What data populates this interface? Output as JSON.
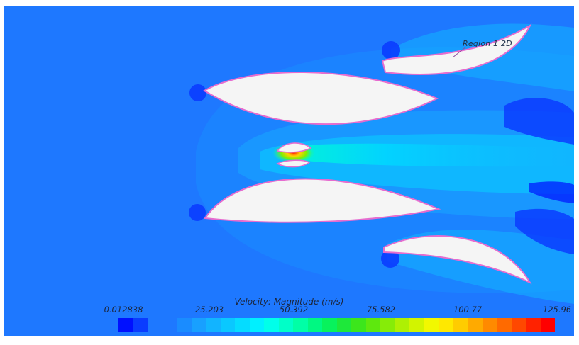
{
  "scene": {
    "region_label": "Region 1 2D",
    "background_color": "#1e78ff",
    "body_fill": "#f5f5f5",
    "body_outline": "#e66ccf"
  },
  "chart_data": {
    "type": "heatmap",
    "title": "Velocity: Magnitude (m/s)",
    "scalar_range": [
      0.012838,
      125.96
    ],
    "tick_labels": [
      "0.012838",
      "25.203",
      "50.392",
      "75.582",
      "100.77",
      "125.96"
    ],
    "tick_values": [
      0.012838,
      25.203,
      50.392,
      75.582,
      100.77,
      125.96
    ],
    "legend_placement": "bottom-center",
    "colormap": [
      "#0010ff",
      "#0a3cff",
      "#1e78ff",
      "#1e78ff",
      "#1a8cff",
      "#18a0ff",
      "#12b4ff",
      "#0ac8ff",
      "#05dcff",
      "#00f0ff",
      "#00ffea",
      "#00ffc8",
      "#00ffa6",
      "#00f882",
      "#08f25c",
      "#1ee83a",
      "#3ce61c",
      "#5ee80e",
      "#86ec08",
      "#aef004",
      "#d2f400",
      "#f2f800",
      "#ffe800",
      "#ffcc00",
      "#ffaa00",
      "#ff8a00",
      "#ff6a00",
      "#ff4800",
      "#ff2200",
      "#ff0000"
    ]
  }
}
